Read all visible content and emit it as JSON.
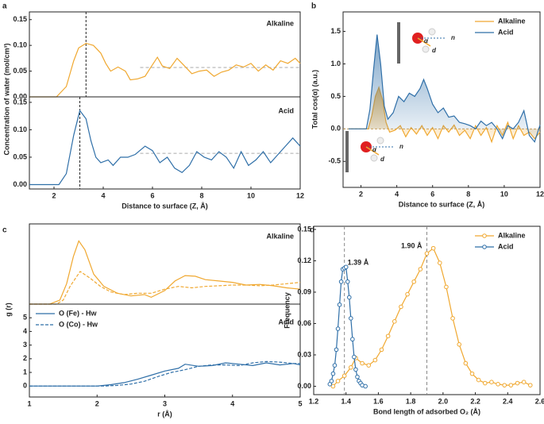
{
  "chart_data": [
    {
      "panel": "a",
      "type": "line",
      "label": "Alkaline",
      "label_color": "#f0a830",
      "ylabel": "Concentration of water (mol/cm³)",
      "xlim": [
        1,
        12
      ],
      "ylim": [
        0,
        0.165
      ],
      "yticks": [
        {
          "value": 0,
          "label": "0.00"
        },
        0.05,
        {
          "value": 0.1,
          "label": "0.10"
        },
        0.15
      ],
      "vline": 3.3,
      "reference_line": {
        "y": 0.057,
        "x": [
          5.5,
          12
        ]
      },
      "series": [
        {
          "color": "#f0a830",
          "x": [
            1,
            2.1,
            2.5,
            2.8,
            3.0,
            3.3,
            3.6,
            3.9,
            4.1,
            4.3,
            4.6,
            4.9,
            5.1,
            5.4,
            5.7,
            5.9,
            6.2,
            6.4,
            6.7,
            7.0,
            7.3,
            7.6,
            7.9,
            8.2,
            8.5,
            8.8,
            9.1,
            9.4,
            9.7,
            10.0,
            10.3,
            10.6,
            10.9,
            11.2,
            11.5,
            11.8,
            12
          ],
          "values": [
            0,
            0,
            0.02,
            0.07,
            0.095,
            0.104,
            0.1,
            0.085,
            0.065,
            0.05,
            0.058,
            0.05,
            0.033,
            0.035,
            0.04,
            0.055,
            0.077,
            0.06,
            0.055,
            0.075,
            0.06,
            0.045,
            0.05,
            0.052,
            0.04,
            0.048,
            0.052,
            0.062,
            0.058,
            0.065,
            0.05,
            0.062,
            0.052,
            0.07,
            0.065,
            0.075,
            0.065
          ]
        }
      ]
    },
    {
      "type": "line",
      "label": "Acid",
      "label_color": "#2f6fa8",
      "xlabel": "Distance to surface (Z, Å)",
      "xlim": [
        1,
        12
      ],
      "xticks": [
        2,
        4,
        6,
        8,
        10,
        12
      ],
      "ylim": [
        -0.008,
        0.16
      ],
      "yticks": [
        {
          "value": 0,
          "label": "0.00"
        },
        0.05,
        {
          "value": 0.1,
          "label": "0.10"
        },
        0.15
      ],
      "vline": 3.05,
      "reference_line": {
        "y": 0.057,
        "x": [
          5.5,
          12
        ]
      },
      "series": [
        {
          "color": "#2f6fa8",
          "x": [
            1,
            2.2,
            2.5,
            2.8,
            3.05,
            3.3,
            3.5,
            3.7,
            3.9,
            4.2,
            4.4,
            4.7,
            5.0,
            5.3,
            5.7,
            6.0,
            6.3,
            6.6,
            6.9,
            7.2,
            7.5,
            7.8,
            8.1,
            8.4,
            8.7,
            9.0,
            9.3,
            9.6,
            9.9,
            10.2,
            10.5,
            10.8,
            11.1,
            11.4,
            11.7,
            12
          ],
          "values": [
            0,
            0,
            0.02,
            0.09,
            0.135,
            0.12,
            0.08,
            0.05,
            0.04,
            0.045,
            0.035,
            0.05,
            0.05,
            0.055,
            0.07,
            0.062,
            0.04,
            0.05,
            0.03,
            0.022,
            0.035,
            0.06,
            0.05,
            0.045,
            0.06,
            0.05,
            0.03,
            0.06,
            0.035,
            0.045,
            0.06,
            0.04,
            0.055,
            0.07,
            0.085,
            0.07
          ]
        }
      ]
    },
    {
      "panel": "b",
      "type": "line",
      "fill": true,
      "ylabel": "Total cos(α) (a.u.)",
      "xlabel": "Distance to surface (Z, Å)",
      "xlim": [
        1,
        12
      ],
      "xticks": [
        2,
        4,
        6,
        8,
        10,
        12
      ],
      "ylim": [
        -0.9,
        1.8
      ],
      "yticks": [
        -0.5,
        {
          "value": 0,
          "label": "0.0"
        },
        0.5,
        {
          "value": 1,
          "label": "1.0"
        },
        1.5
      ],
      "legend": "top-right",
      "inset_labels": [
        "n",
        "d",
        "α"
      ],
      "series": [
        {
          "name": "Alkaline",
          "color": "#f0a830",
          "x": [
            1.3,
            2.4,
            2.6,
            2.8,
            3.0,
            3.2,
            3.4,
            3.6,
            3.9,
            4.2,
            4.5,
            4.8,
            5.1,
            5.4,
            5.7,
            6.0,
            6.3,
            6.6,
            6.9,
            7.2,
            7.5,
            7.8,
            8.1,
            8.4,
            8.7,
            9.0,
            9.3,
            9.6,
            9.9,
            10.2,
            10.5,
            10.8,
            11.1,
            11.4,
            11.7,
            12
          ],
          "values": [
            0,
            0,
            0.2,
            0.5,
            0.64,
            0.45,
            0.1,
            -0.05,
            -0.02,
            0.05,
            -0.12,
            0.02,
            -0.08,
            0.05,
            -0.1,
            0.02,
            -0.15,
            0.05,
            -0.05,
            0.06,
            -0.1,
            -0.02,
            -0.15,
            0.05,
            -0.1,
            0.02,
            -0.2,
            0.05,
            -0.1,
            0.1,
            -0.15,
            0.05,
            -0.1,
            -0.05,
            -0.15,
            -0.05
          ]
        },
        {
          "name": "Acid",
          "color": "#2f6fa8",
          "x": [
            1.3,
            2.3,
            2.5,
            2.7,
            2.9,
            3.1,
            3.3,
            3.5,
            3.8,
            4.1,
            4.4,
            4.7,
            5.0,
            5.3,
            5.5,
            5.7,
            6.0,
            6.3,
            6.6,
            6.9,
            7.2,
            7.5,
            7.8,
            8.1,
            8.4,
            8.7,
            9.0,
            9.3,
            9.6,
            9.9,
            10.2,
            10.5,
            10.8,
            11.1,
            11.4,
            11.7,
            12
          ],
          "values": [
            0,
            0,
            0.3,
            0.9,
            1.45,
            1.0,
            0.35,
            0.15,
            0.25,
            0.5,
            0.42,
            0.55,
            0.5,
            0.62,
            0.76,
            0.62,
            0.38,
            0.25,
            0.32,
            0.18,
            0.2,
            0.1,
            0.08,
            0.05,
            0,
            0.12,
            0.05,
            0.1,
            0,
            -0.15,
            0.05,
            0,
            0.1,
            0.28,
            -0.1,
            -0.2,
            0.06
          ]
        }
      ]
    },
    {
      "panel": "c",
      "type": "line",
      "label": "Alkaline",
      "label_color": "#f0a830",
      "xlim": [
        1,
        5
      ],
      "ylim": [
        0,
        5.9
      ],
      "series": [
        {
          "color": "#f0a830",
          "dash": false,
          "x": [
            1,
            1.3,
            1.45,
            1.55,
            1.65,
            1.73,
            1.82,
            1.95,
            2.1,
            2.3,
            2.5,
            2.7,
            2.8,
            3.0,
            3.15,
            3.3,
            3.45,
            3.6,
            3.8,
            4.0,
            4.2,
            4.4,
            4.6,
            4.8,
            5.0
          ],
          "values": [
            0,
            0,
            0.3,
            1.5,
            3.5,
            4.65,
            4.0,
            2.2,
            1.3,
            0.8,
            0.6,
            0.7,
            0.5,
            1.0,
            1.7,
            2.1,
            2.05,
            1.8,
            1.7,
            1.6,
            1.4,
            1.45,
            1.35,
            1.2,
            1.1
          ]
        },
        {
          "color": "#f0a830",
          "dash": true,
          "x": [
            1,
            1.4,
            1.5,
            1.6,
            1.75,
            1.9,
            2.05,
            2.2,
            2.4,
            2.6,
            2.8,
            3.0,
            3.2,
            3.4,
            3.6,
            3.8,
            4.0,
            4.2,
            4.4,
            4.6,
            4.8,
            5.0
          ],
          "values": [
            0,
            0,
            0.3,
            1.3,
            2.4,
            1.9,
            1.3,
            0.9,
            0.7,
            0.8,
            0.8,
            1.1,
            1.3,
            1.2,
            1.3,
            1.35,
            1.4,
            1.4,
            1.35,
            1.4,
            1.5,
            1.6
          ]
        }
      ]
    },
    {
      "type": "line",
      "label": "Acid",
      "label_color": "#2f6fa8",
      "ylabel": "g (r)",
      "xlabel": "r (Å)",
      "xlim": [
        1,
        5
      ],
      "xticks": [
        1,
        2,
        3,
        4,
        5
      ],
      "ylim": [
        -0.8,
        6
      ],
      "yticks": [
        0,
        1,
        2,
        3,
        4,
        5
      ],
      "legend": "top-left",
      "series": [
        {
          "name": "O (Fe) - Hw",
          "color": "#2f6fa8",
          "dash": false,
          "x": [
            1,
            2.0,
            2.2,
            2.4,
            2.6,
            2.8,
            3.0,
            3.2,
            3.3,
            3.5,
            3.7,
            3.9,
            4.1,
            4.3,
            4.5,
            4.7,
            4.9,
            5.0
          ],
          "values": [
            0,
            0,
            0.1,
            0.25,
            0.5,
            0.8,
            1.1,
            1.3,
            1.6,
            1.45,
            1.5,
            1.7,
            1.6,
            1.5,
            1.7,
            1.55,
            1.65,
            1.55
          ]
        },
        {
          "name": "O (Co) - Hw",
          "color": "#2f6fa8",
          "dash": true,
          "x": [
            1,
            2.1,
            2.3,
            2.5,
            2.7,
            2.9,
            3.1,
            3.3,
            3.5,
            3.7,
            3.9,
            4.1,
            4.3,
            4.5,
            4.7,
            4.9,
            5.0
          ],
          "values": [
            0,
            0,
            0.05,
            0.15,
            0.35,
            0.7,
            1.0,
            1.2,
            1.45,
            1.55,
            1.55,
            1.5,
            1.7,
            1.8,
            1.75,
            1.65,
            1.65
          ]
        }
      ]
    },
    {
      "panel": "d",
      "type": "line",
      "markers": "circle",
      "ylabel": "Frequency",
      "xlabel": "Bond length of adsorbed O₂ (Å)",
      "xlim": [
        1.2,
        2.6
      ],
      "xticks": [
        1.2,
        1.4,
        1.6,
        1.8,
        {
          "value": 2,
          "label": "2.0"
        },
        2.2,
        2.4,
        2.6
      ],
      "ylim": [
        -0.008,
        0.153
      ],
      "yticks": [
        {
          "value": 0,
          "label": "0.00"
        },
        0.03,
        0.06,
        0.09,
        0.12,
        0.15
      ],
      "legend": "top-right",
      "annotations": [
        {
          "text": "1.90 Å",
          "x": 1.9,
          "color": "#f0a830"
        },
        {
          "text": "1.39 Å",
          "x": 1.39,
          "color": "#2f6fa8"
        }
      ],
      "series": [
        {
          "name": "Alkaline",
          "color": "#f0a830",
          "x": [
            1.32,
            1.35,
            1.39,
            1.43,
            1.46,
            1.5,
            1.54,
            1.58,
            1.62,
            1.66,
            1.7,
            1.74,
            1.78,
            1.82,
            1.86,
            1.9,
            1.94,
            1.98,
            2.02,
            2.06,
            2.1,
            2.14,
            2.18,
            2.22,
            2.26,
            2.3,
            2.34,
            2.38,
            2.42,
            2.46,
            2.5,
            2.54
          ],
          "values": [
            0,
            0.005,
            0.01,
            0.018,
            0.027,
            0.022,
            0.02,
            0.025,
            0.035,
            0.048,
            0.062,
            0.076,
            0.088,
            0.1,
            0.112,
            0.127,
            0.132,
            0.118,
            0.095,
            0.065,
            0.04,
            0.022,
            0.012,
            0.006,
            0.003,
            0.004,
            0.002,
            0.001,
            0.001,
            0.003,
            0.004,
            0.001
          ]
        },
        {
          "name": "Acid",
          "color": "#2f6fa8",
          "x": [
            1.3,
            1.31,
            1.32,
            1.33,
            1.34,
            1.35,
            1.36,
            1.37,
            1.38,
            1.39,
            1.4,
            1.41,
            1.42,
            1.43,
            1.44,
            1.45,
            1.46,
            1.47,
            1.48,
            1.49,
            1.5,
            1.52
          ],
          "values": [
            0.002,
            0.005,
            0.012,
            0.02,
            0.035,
            0.055,
            0.078,
            0.1,
            0.112,
            0.113,
            0.114,
            0.1,
            0.085,
            0.065,
            0.045,
            0.028,
            0.016,
            0.009,
            0.005,
            0.003,
            0.001,
            0
          ]
        }
      ]
    }
  ]
}
